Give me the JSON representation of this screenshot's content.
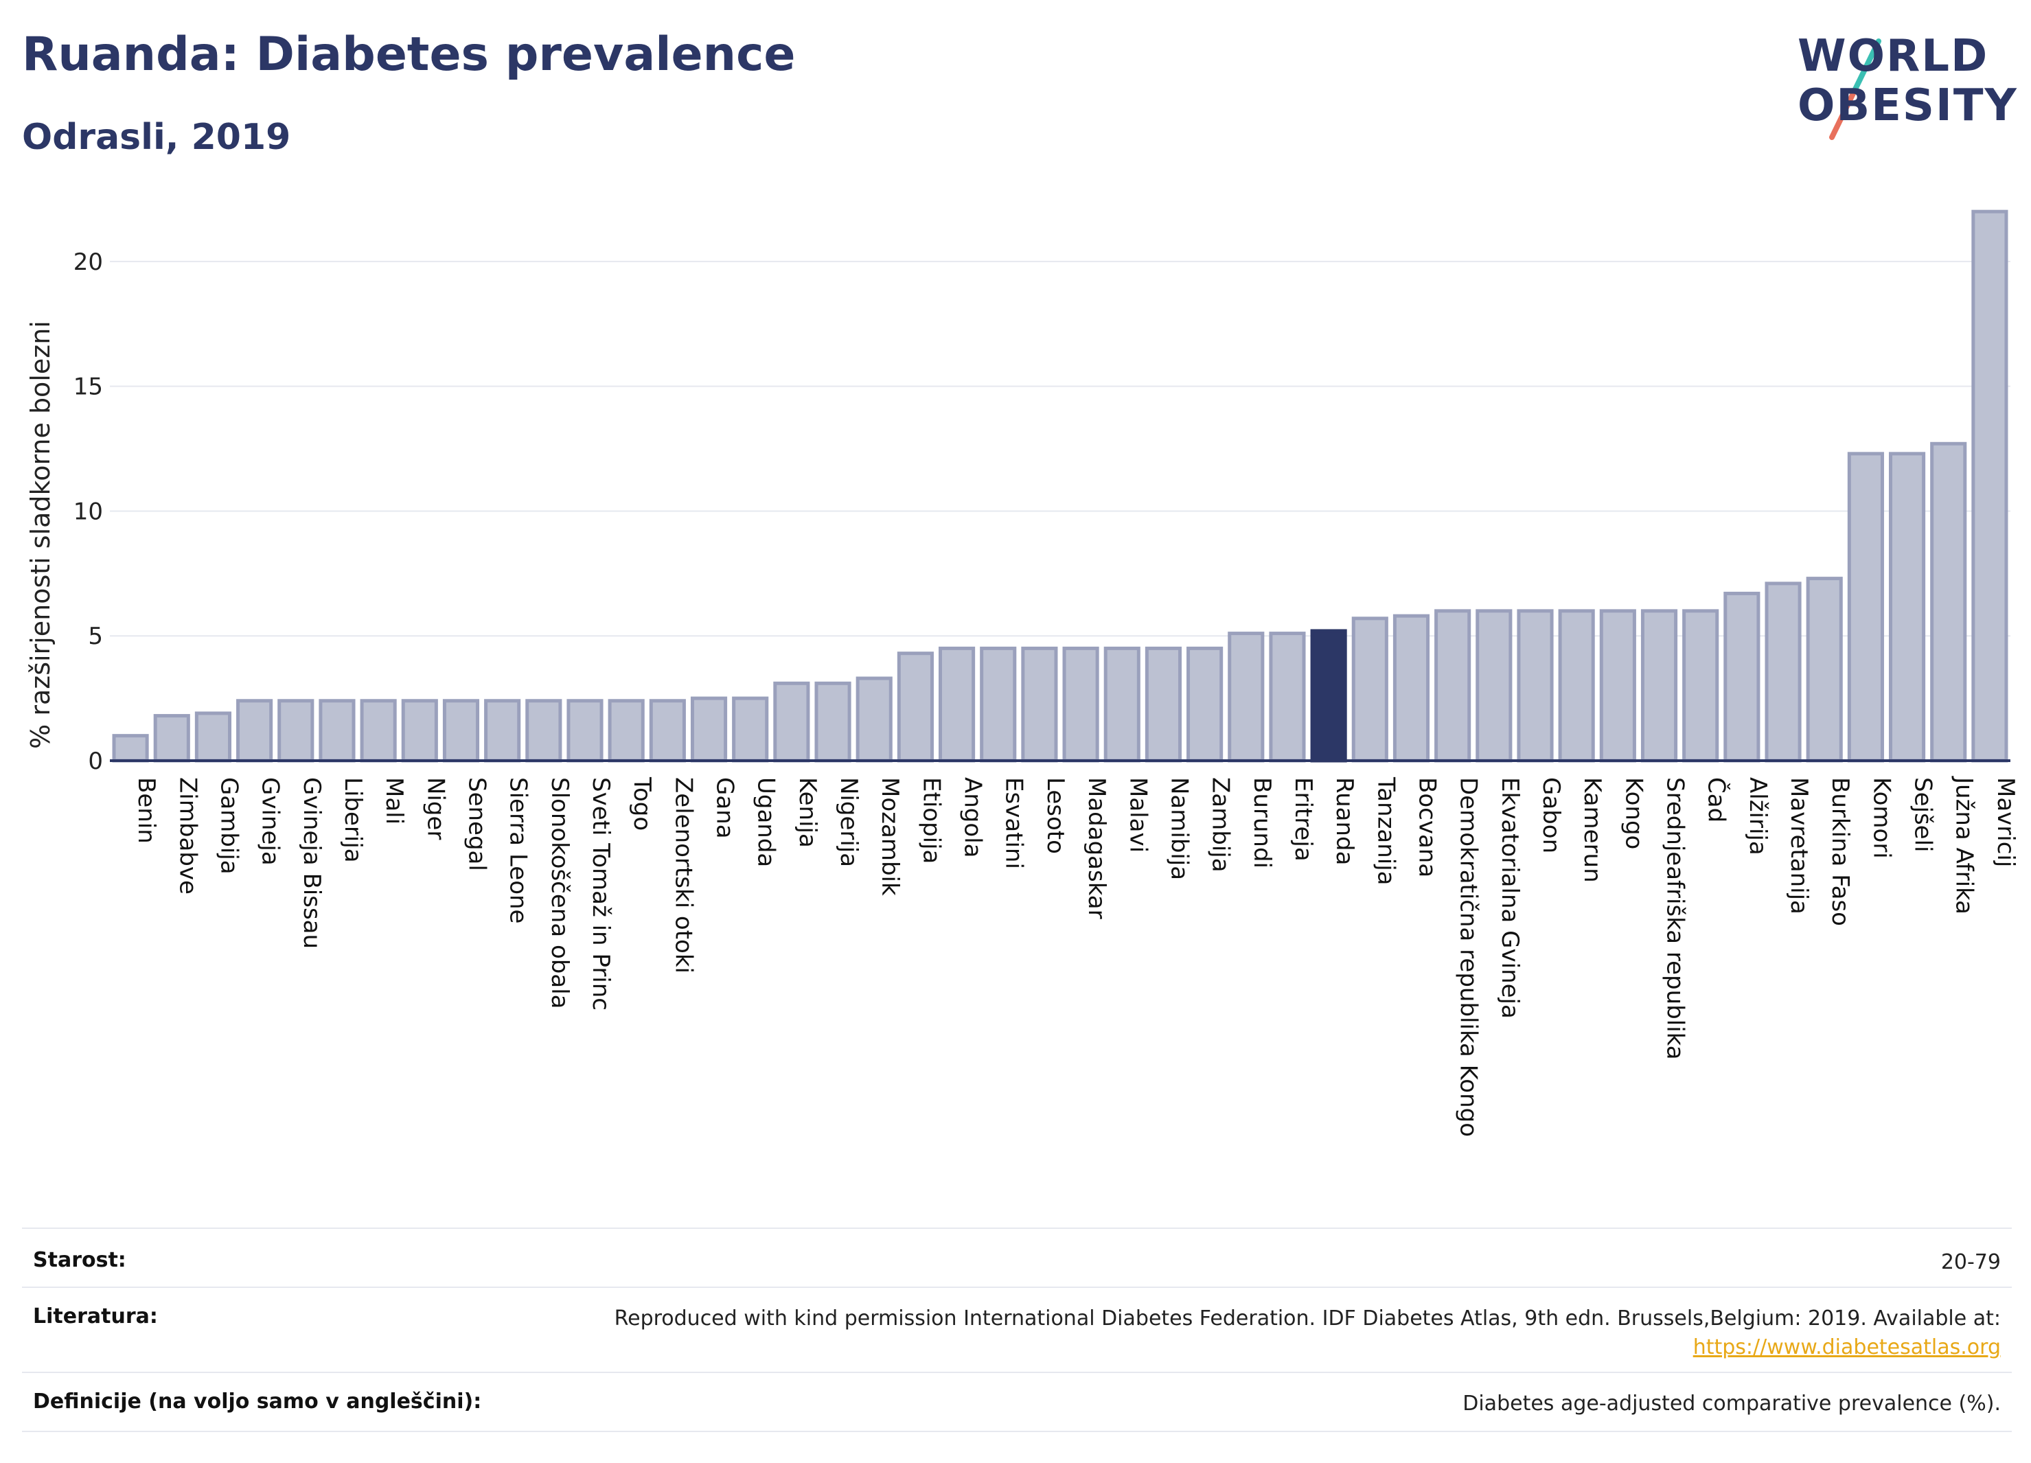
{
  "header": {
    "title": "Ruanda: Diabetes prevalence",
    "subtitle": "Odrasli, 2019"
  },
  "logo": {
    "line1": "WORLD",
    "line2": "OBESITY",
    "accent_teal": "#3bbfb3",
    "accent_coral": "#e8705c"
  },
  "colors": {
    "bar_fill": "#bcc1d2",
    "bar_stroke": "#9aa0bc",
    "highlight": "#2c3766",
    "grid": "#e6e8ef",
    "axis": "#2c3766"
  },
  "chart_data": {
    "type": "bar",
    "ylabel": "% razširjenosti sladkorne bolezni",
    "ylim": [
      0,
      22.5
    ],
    "yticks": [
      0,
      5,
      10,
      15,
      20
    ],
    "grid": true,
    "highlight": "Ruanda",
    "categories": [
      "Benin",
      "Zimbabve",
      "Gambija",
      "Gvineja",
      "Gvineja Bissau",
      "Liberija",
      "Mali",
      "Niger",
      "Senegal",
      "Sierra Leone",
      "Slonokoščena obala",
      "Sveti Tomaž in Princ",
      "Togo",
      "Zelenortski otoki",
      "Gana",
      "Uganda",
      "Kenija",
      "Nigerija",
      "Mozambik",
      "Etiopija",
      "Angola",
      "Esvatini",
      "Lesoto",
      "Madagaskar",
      "Malavi",
      "Namibija",
      "Zambija",
      "Burundi",
      "Eritreja",
      "Ruanda",
      "Tanzanija",
      "Bocvana",
      "Demokratična republika Kongo",
      "Ekvatorialna Gvineja",
      "Gabon",
      "Kamerun",
      "Kongo",
      "Srednjeafriška republika",
      "Čad",
      "Alžirija",
      "Mavretanija",
      "Burkina Faso",
      "Komori",
      "Sejšeli",
      "Južna Afrika",
      "Mavricij"
    ],
    "values": [
      1.0,
      1.8,
      1.9,
      2.4,
      2.4,
      2.4,
      2.4,
      2.4,
      2.4,
      2.4,
      2.4,
      2.4,
      2.4,
      2.4,
      2.5,
      2.5,
      3.1,
      3.1,
      3.3,
      4.3,
      4.5,
      4.5,
      4.5,
      4.5,
      4.5,
      4.5,
      4.5,
      5.1,
      5.1,
      5.2,
      5.7,
      5.8,
      6.0,
      6.0,
      6.0,
      6.0,
      6.0,
      6.0,
      6.0,
      6.7,
      7.1,
      7.3,
      12.3,
      12.3,
      12.7,
      22.0
    ]
  },
  "footer": {
    "age_label": "Starost:",
    "age_value": "20-79",
    "lit_label": "Literatura:",
    "lit_value": "Reproduced with kind permission International Diabetes Federation. IDF Diabetes Atlas, 9th edn. Brussels,Belgium: 2019. Available at:",
    "lit_link": "https://www.diabetesatlas.org",
    "def_label": "Definicije (na voljo samo v angleščini):",
    "def_value": "Diabetes age-adjusted comparative prevalence (%)."
  }
}
